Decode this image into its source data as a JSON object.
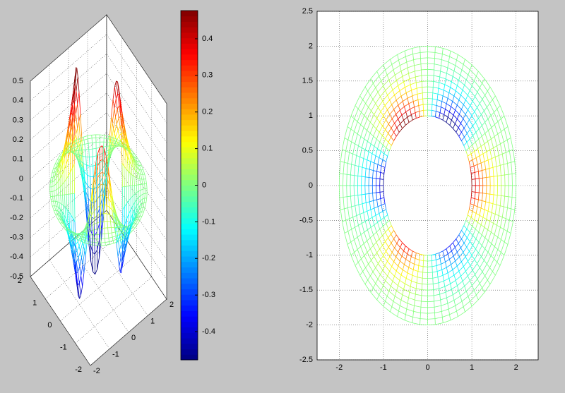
{
  "chart_data": [
    {
      "type": "mesh3d",
      "xlim": [
        -2,
        2
      ],
      "ylim": [
        -2,
        2
      ],
      "zlim": [
        -0.5,
        0.5
      ],
      "xticks": [
        -2,
        -1,
        0,
        1,
        2
      ],
      "yticks": [
        -2,
        -1,
        0,
        1,
        2
      ],
      "zticks": [
        -0.5,
        -0.4,
        -0.3,
        -0.2,
        -0.1,
        0,
        0.1,
        0.2,
        0.3,
        0.4,
        0.5
      ],
      "grid": true,
      "colormap": "jet"
    },
    {
      "type": "colorbar",
      "ylim": [
        -0.477,
        0.477
      ],
      "yticks": [
        -0.4,
        -0.3,
        -0.2,
        -0.1,
        0,
        0.1,
        0.2,
        0.3,
        0.4
      ],
      "colormap": "jet"
    },
    {
      "type": "mesh2d",
      "xlim": [
        -2.5,
        2.5
      ],
      "ylim": [
        -2.5,
        2.5
      ],
      "xticks": [
        -2,
        -1,
        0,
        1,
        2
      ],
      "yticks": [
        -2.5,
        -2,
        -1.5,
        -1,
        -0.5,
        0,
        0.5,
        1,
        1.5,
        2,
        2.5
      ],
      "grid": true,
      "colormap": "jet"
    }
  ]
}
